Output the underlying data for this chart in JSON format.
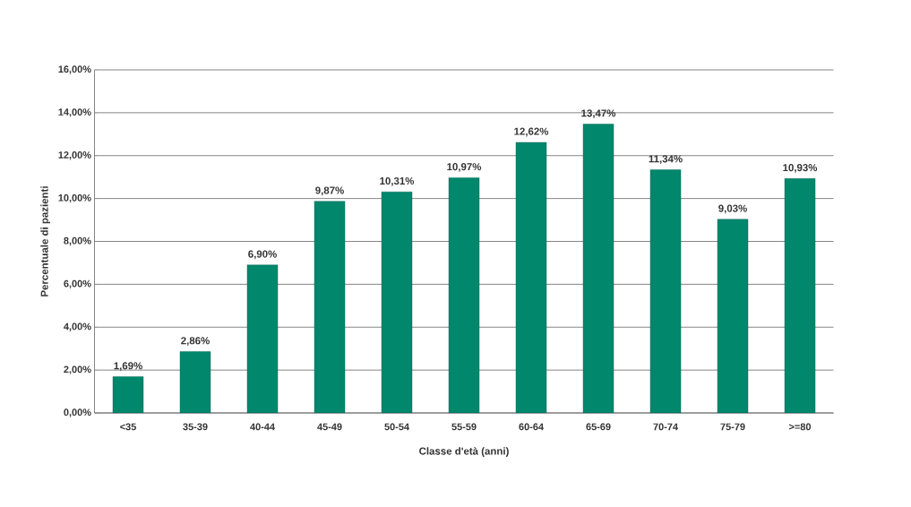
{
  "chart_data": {
    "type": "bar",
    "xlabel": "Classe d'età (anni)",
    "ylabel": "Percentuale di pazienti",
    "categories": [
      "<35",
      "35-39",
      "40-44",
      "45-49",
      "50-54",
      "55-59",
      "60-64",
      "65-69",
      "70-74",
      "75-79",
      ">=80"
    ],
    "values": [
      1.69,
      2.86,
      6.9,
      9.87,
      10.31,
      10.97,
      12.62,
      13.47,
      11.34,
      9.03,
      10.93
    ],
    "value_labels": [
      "1,69%",
      "2,86%",
      "6,90%",
      "9,87%",
      "10,31%",
      "10,97%",
      "12,62%",
      "13,47%",
      "11,34%",
      "9,03%",
      "10,93%"
    ],
    "color": "#00876c",
    "ylim": [
      0,
      16
    ],
    "yticks": [
      {
        "value": 0,
        "label": "0,00%"
      },
      {
        "value": 2,
        "label": "2,00%"
      },
      {
        "value": 4,
        "label": "4,00%"
      },
      {
        "value": 6,
        "label": "6,00%"
      },
      {
        "value": 8,
        "label": "8,00%"
      },
      {
        "value": 10,
        "label": "10,00%"
      },
      {
        "value": 12,
        "label": "12,00%"
      },
      {
        "value": 14,
        "label": "14,00%"
      },
      {
        "value": 16,
        "label": "16,00%"
      }
    ],
    "grid": "y"
  }
}
